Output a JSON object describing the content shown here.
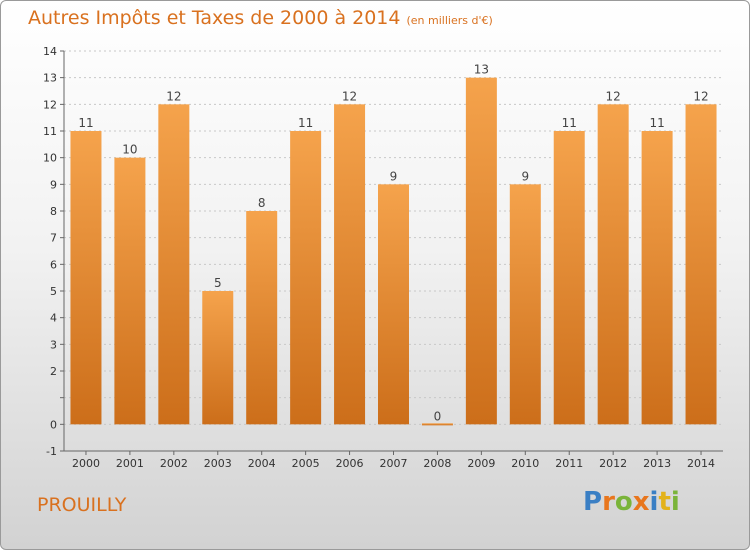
{
  "title": "Autres Impôts et Taxes de 2000 à 2014",
  "unit_note": "(en milliers d'€)",
  "commune": "PROUILLY",
  "logo": {
    "text": "Proxiti",
    "letters": [
      {
        "ch": "P",
        "color": "#3a7fc4"
      },
      {
        "ch": "r",
        "color": "#e8761d"
      },
      {
        "ch": "o",
        "color": "#7ab43a"
      },
      {
        "ch": "x",
        "color": "#e8761d"
      },
      {
        "ch": "i",
        "color": "#3a7fc4"
      },
      {
        "ch": "t",
        "color": "#e3b21a"
      },
      {
        "ch": "i",
        "color": "#7ab43a"
      }
    ]
  },
  "colors": {
    "accent": "#d9711f",
    "bar_top": "#f5a34c",
    "bar_bottom": "#cc6e1a",
    "grid": "#c8c8c8"
  },
  "chart_data": {
    "type": "bar",
    "categories": [
      "2000",
      "2001",
      "2002",
      "2003",
      "2004",
      "2005",
      "2006",
      "2007",
      "2008",
      "2009",
      "2010",
      "2011",
      "2012",
      "2013",
      "2014"
    ],
    "values": [
      11,
      10,
      12,
      5,
      8,
      11,
      12,
      9,
      0,
      13,
      9,
      11,
      12,
      11,
      12
    ],
    "data_labels": [
      "11",
      "10",
      "12",
      "5",
      "8",
      "11",
      "12",
      "9",
      "0",
      "13",
      "9",
      "11",
      "12",
      "11",
      "12"
    ],
    "ylim": [
      -1,
      14
    ],
    "yticks": [
      -1,
      0,
      1,
      2,
      3,
      4,
      5,
      6,
      7,
      8,
      9,
      10,
      11,
      12,
      13,
      14
    ],
    "ytick_labels": [
      "-1",
      "0",
      "",
      "2",
      "3",
      "4",
      "5",
      "6",
      "7",
      "8",
      "9",
      "10",
      "11",
      "12",
      "13",
      "14"
    ],
    "grid": true,
    "xlabel": "",
    "ylabel": ""
  }
}
